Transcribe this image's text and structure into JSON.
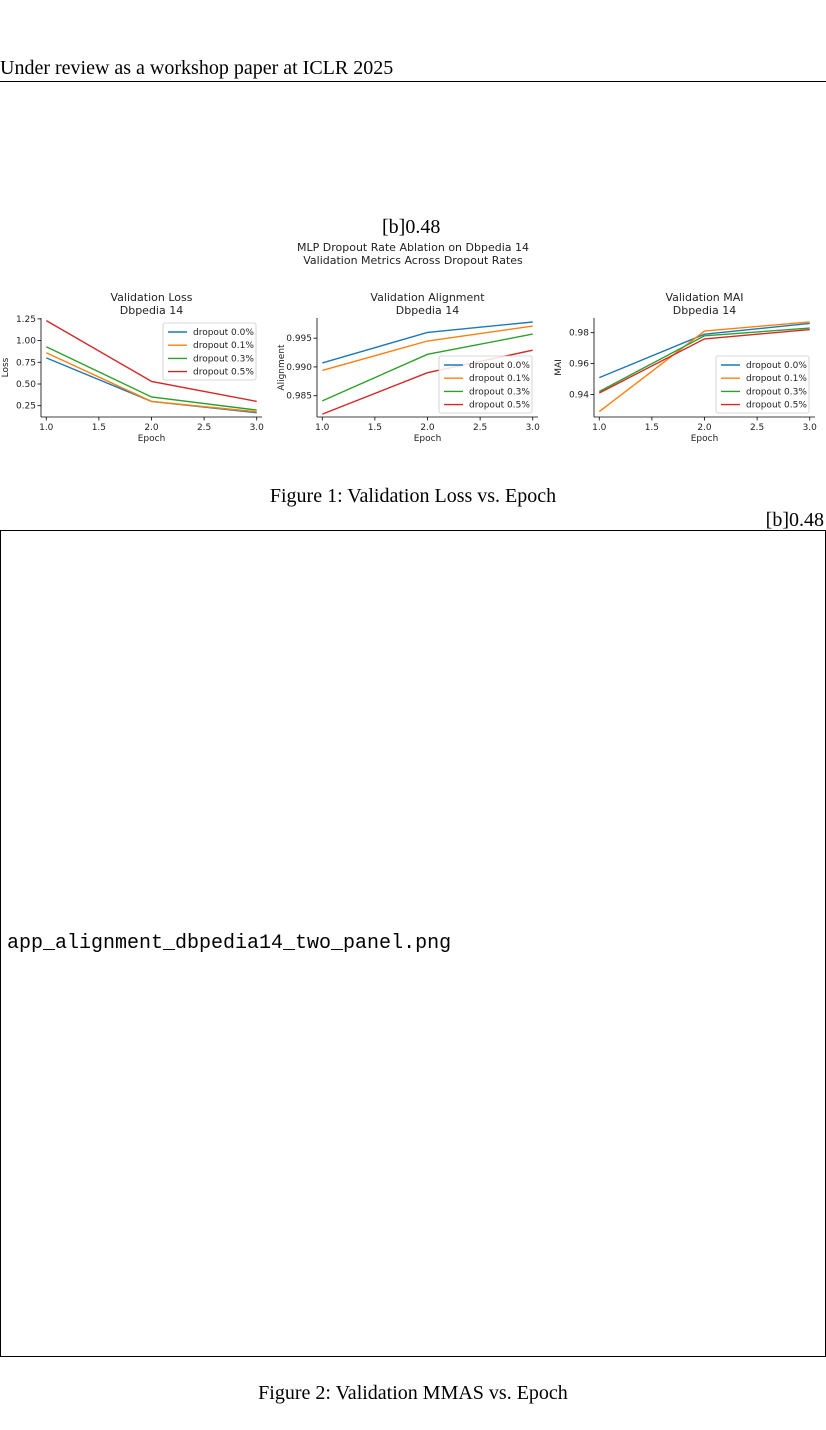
{
  "header": {
    "text": "Under review as a workshop paper at ICLR 2025"
  },
  "figure1": {
    "subfig_label": "[b]0.48",
    "suptitle": [
      "MLP Dropout Rate Ablation on Dbpedia 14",
      "Validation Metrics Across Dropout Rates"
    ],
    "caption": "Figure 1: Validation Loss vs. Epoch"
  },
  "figure2": {
    "subfig_label": "[b]0.48",
    "placeholder": "app_alignment_dbpedia14_two_panel.png",
    "caption": "Figure 2: Validation MMAS vs. Epoch"
  },
  "colors": {
    "s0": "#1f77b4",
    "s1": "#ff7f0e",
    "s2": "#2ca02c",
    "s3": "#d62728"
  },
  "chart_data": [
    {
      "type": "line",
      "title": [
        "Validation Loss",
        "Dbpedia 14"
      ],
      "xlabel": "Epoch",
      "ylabel": "Loss",
      "x": [
        1.0,
        2.0,
        3.0
      ],
      "xlim": [
        0.95,
        3.05
      ],
      "ylim": [
        0.12,
        1.26
      ],
      "xticks": [
        "1.0",
        "1.5",
        "2.0",
        "2.5",
        "3.0"
      ],
      "yticks": [
        "0.25",
        "0.50",
        "0.75",
        "1.00",
        "1.25"
      ],
      "legend": "top-right",
      "series": [
        {
          "name": "dropout 0.0%",
          "values": [
            0.8,
            0.3,
            0.17
          ]
        },
        {
          "name": "dropout 0.1%",
          "values": [
            0.86,
            0.3,
            0.18
          ]
        },
        {
          "name": "dropout 0.3%",
          "values": [
            0.93,
            0.35,
            0.2
          ]
        },
        {
          "name": "dropout 0.5%",
          "values": [
            1.23,
            0.53,
            0.3
          ]
        }
      ]
    },
    {
      "type": "line",
      "title": [
        "Validation Alignment",
        "Dbpedia 14"
      ],
      "xlabel": "Epoch",
      "ylabel": "Alignment",
      "x": [
        1.0,
        2.0,
        3.0
      ],
      "xlim": [
        0.95,
        3.05
      ],
      "ylim": [
        0.9813,
        0.9985
      ],
      "xticks": [
        "1.0",
        "1.5",
        "2.0",
        "2.5",
        "3.0"
      ],
      "yticks": [
        "0.985",
        "0.990",
        "0.995"
      ],
      "legend": "bottom-right",
      "series": [
        {
          "name": "dropout 0.0%",
          "values": [
            0.9907,
            0.996,
            0.9978
          ]
        },
        {
          "name": "dropout 0.1%",
          "values": [
            0.9894,
            0.9945,
            0.9971
          ]
        },
        {
          "name": "dropout 0.3%",
          "values": [
            0.9841,
            0.9922,
            0.9957
          ]
        },
        {
          "name": "dropout 0.5%",
          "values": [
            0.9818,
            0.989,
            0.9929
          ]
        }
      ]
    },
    {
      "type": "line",
      "title": [
        "Validation MAI",
        "Dbpedia 14"
      ],
      "xlabel": "Epoch",
      "ylabel": "MAI",
      "x": [
        1.0,
        2.0,
        3.0
      ],
      "xlim": [
        0.95,
        3.05
      ],
      "ylim": [
        0.9255,
        0.9895
      ],
      "xticks": [
        "1.0",
        "1.5",
        "2.0",
        "2.5",
        "3.0"
      ],
      "yticks": [
        "0.94",
        "0.96",
        "0.98"
      ],
      "legend": "lower-right",
      "series": [
        {
          "name": "dropout 0.0%",
          "values": [
            0.951,
            0.979,
            0.986
          ]
        },
        {
          "name": "dropout 0.1%",
          "values": [
            0.929,
            0.981,
            0.987
          ]
        },
        {
          "name": "dropout 0.3%",
          "values": [
            0.942,
            0.978,
            0.983
          ]
        },
        {
          "name": "dropout 0.5%",
          "values": [
            0.941,
            0.976,
            0.982
          ]
        }
      ]
    }
  ]
}
